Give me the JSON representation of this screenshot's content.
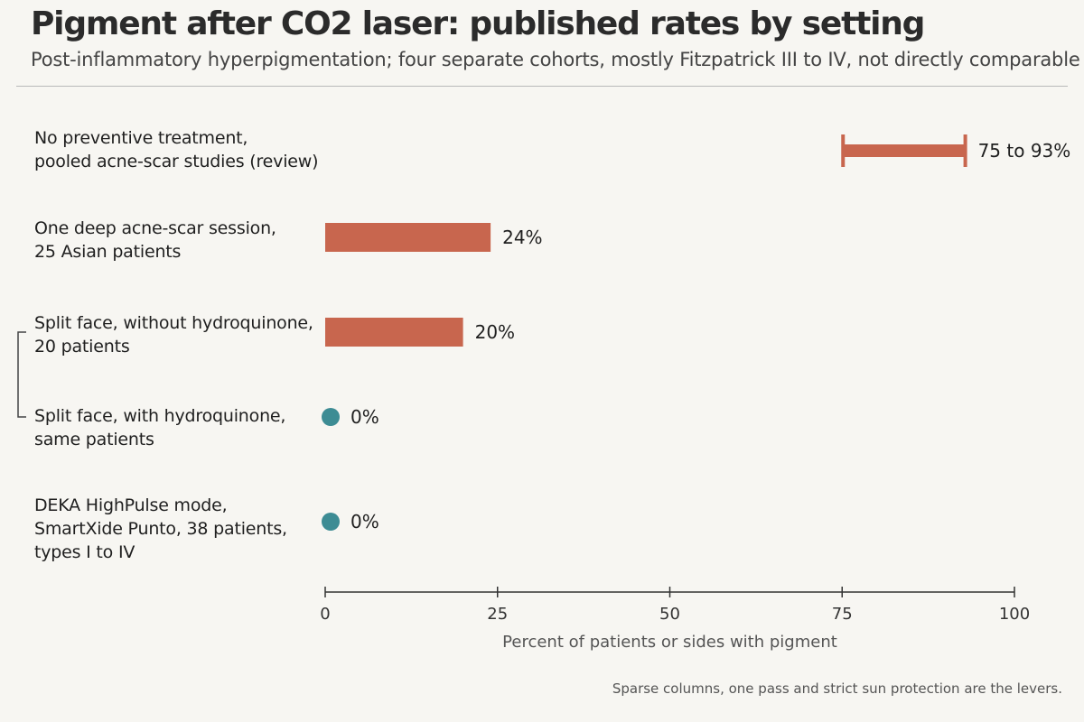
{
  "title": "Pigment after CO2 laser: published rates by setting",
  "subtitle": "Post-inflammatory hyperpigmentation; four separate cohorts, mostly Fitzpatrick III to IV, not directly comparable",
  "footnote": "Sparse columns, one pass and strict sun protection are the levers.",
  "colors": {
    "bar": "#c8664e",
    "dot": "#3d8c94",
    "axis": "#333333",
    "rule": "#b9b9b9",
    "background": "#f7f6f2"
  },
  "chart_data": {
    "type": "bar",
    "orientation": "horizontal",
    "xlabel": "Percent of patients or sides with pigment",
    "xlim": [
      0,
      100
    ],
    "xticks": [
      0,
      25,
      50,
      75,
      100
    ],
    "grid": false,
    "categories": [
      {
        "label": "No preventive treatment,\npooled acne-scar studies (review)",
        "kind": "range",
        "low": 75,
        "high": 93,
        "value_label": "75 to 93%"
      },
      {
        "label": "One deep acne-scar session,\n25 Asian patients",
        "kind": "bar",
        "value": 24,
        "value_label": "24%"
      },
      {
        "label": "Split face, without hydroquinone,\n20 patients",
        "kind": "bar",
        "value": 20,
        "value_label": "20%"
      },
      {
        "label": "Split face, with hydroquinone,\nsame patients",
        "kind": "dot",
        "value": 0,
        "value_label": "0%"
      },
      {
        "label": "DEKA HighPulse mode,\nSmartXide Punto, 38 patients,\ntypes I to IV",
        "kind": "dot",
        "value": 0,
        "value_label": "0%"
      }
    ],
    "bracket": {
      "from": 2,
      "to": 3
    }
  }
}
